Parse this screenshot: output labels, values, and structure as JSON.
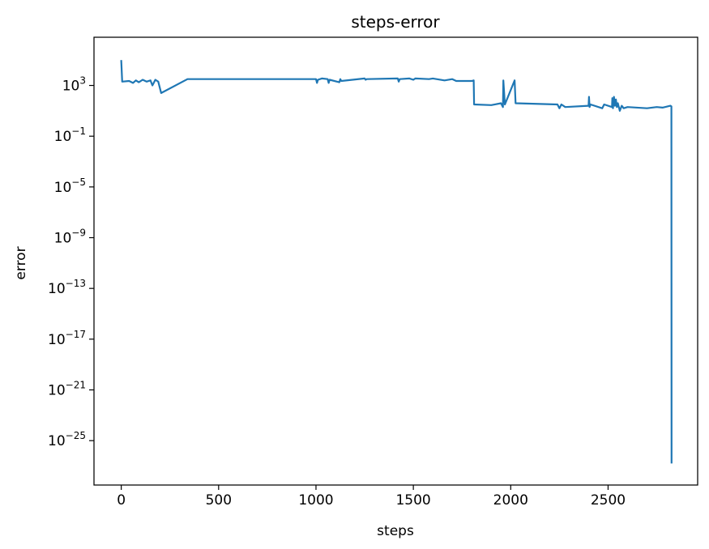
{
  "chart_data": {
    "type": "line",
    "title": "steps-error",
    "xlabel": "steps",
    "ylabel": "error",
    "xlim": [
      -140,
      2960
    ],
    "ylim_log10": [
      -28.5,
      6.8
    ],
    "yscale": "log",
    "grid": false,
    "x_ticks": [
      0,
      500,
      1000,
      1500,
      2000,
      2500
    ],
    "y_ticks": [
      {
        "base": "10",
        "exponent": "3",
        "log10": 3
      },
      {
        "base": "10",
        "exponent": "−1",
        "log10": -1
      },
      {
        "base": "10",
        "exponent": "−5",
        "log10": -5
      },
      {
        "base": "10",
        "exponent": "−9",
        "log10": -9
      },
      {
        "base": "10",
        "exponent": "−13",
        "log10": -13
      },
      {
        "base": "10",
        "exponent": "−17",
        "log10": -17
      },
      {
        "base": "10",
        "exponent": "−21",
        "log10": -21
      },
      {
        "base": "10",
        "exponent": "−25",
        "log10": -25
      }
    ],
    "series": [
      {
        "color": "#1f77b4",
        "x": [
          0,
          5,
          40,
          60,
          75,
          90,
          110,
          130,
          150,
          160,
          175,
          190,
          205,
          340,
          1000,
          1005,
          1010,
          1030,
          1060,
          1065,
          1070,
          1120,
          1125,
          1130,
          1250,
          1255,
          1260,
          1420,
          1425,
          1430,
          1480,
          1500,
          1510,
          1580,
          1600,
          1660,
          1700,
          1720,
          1800,
          1810,
          1812,
          1900,
          1950,
          1960,
          1962,
          1970,
          2020,
          2025,
          2240,
          2250,
          2260,
          2280,
          2400,
          2402,
          2405,
          2410,
          2470,
          2480,
          2520,
          2522,
          2525,
          2530,
          2535,
          2540,
          2545,
          2550,
          2560,
          2570,
          2580,
          2600,
          2700,
          2750,
          2780,
          2820,
          2825,
          2826
        ],
        "log10y": [
          5.0,
          3.3,
          3.35,
          3.2,
          3.4,
          3.25,
          3.45,
          3.3,
          3.4,
          3.0,
          3.45,
          3.3,
          2.4,
          3.5,
          3.5,
          3.2,
          3.45,
          3.55,
          3.5,
          3.2,
          3.45,
          3.25,
          3.5,
          3.35,
          3.55,
          3.45,
          3.5,
          3.55,
          3.3,
          3.5,
          3.55,
          3.45,
          3.55,
          3.5,
          3.55,
          3.4,
          3.5,
          3.35,
          3.35,
          3.4,
          1.5,
          1.45,
          1.6,
          1.3,
          3.4,
          1.5,
          3.4,
          1.6,
          1.5,
          1.2,
          1.5,
          1.3,
          1.4,
          2.1,
          1.3,
          1.5,
          1.2,
          1.5,
          1.3,
          2.0,
          1.2,
          2.1,
          1.4,
          1.9,
          1.3,
          1.6,
          1.0,
          1.4,
          1.2,
          1.3,
          1.2,
          1.3,
          1.25,
          1.4,
          1.35,
          -26.8
        ]
      }
    ]
  }
}
